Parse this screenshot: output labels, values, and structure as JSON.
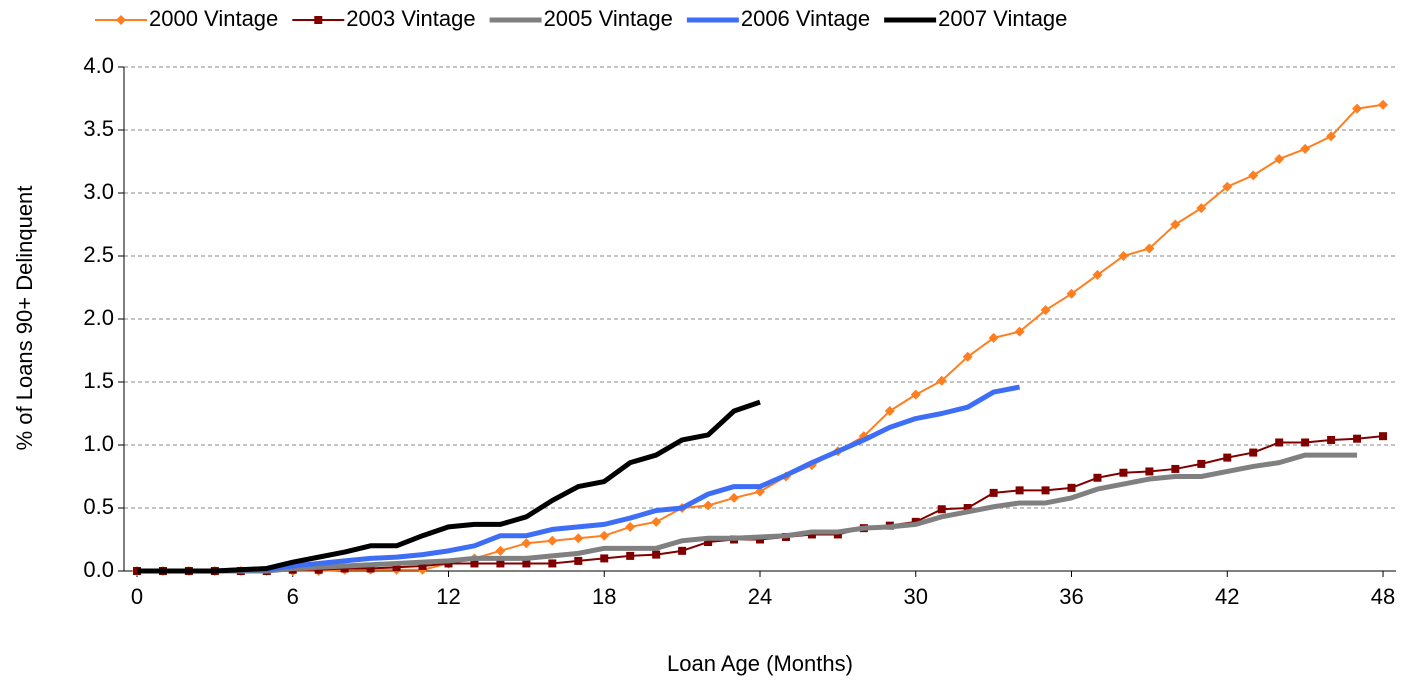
{
  "chart_data": {
    "type": "line",
    "x_label": "Loan Age (Months)",
    "y_label": "% of Loans 90+ Delinquent",
    "x": [
      0,
      1,
      2,
      3,
      4,
      5,
      6,
      7,
      8,
      9,
      10,
      11,
      12,
      13,
      14,
      15,
      16,
      17,
      18,
      19,
      20,
      21,
      22,
      23,
      24,
      25,
      26,
      27,
      28,
      29,
      30,
      31,
      32,
      33,
      34,
      35,
      36,
      37,
      38,
      39,
      40,
      41,
      42,
      43,
      44,
      45,
      46,
      47,
      48
    ],
    "xlim": [
      -0.5,
      48.5
    ],
    "xticks": [
      0,
      6,
      12,
      18,
      24,
      30,
      36,
      42,
      48
    ],
    "ylim": [
      0,
      4
    ],
    "yticks": [
      {
        "value": 0,
        "label": "0.0"
      },
      {
        "value": 0.5,
        "label": "0.5"
      },
      {
        "value": 1,
        "label": "1.0"
      },
      {
        "value": 1.5,
        "label": "1.5"
      },
      {
        "value": 2,
        "label": "2.0"
      },
      {
        "value": 2.5,
        "label": "2.5"
      },
      {
        "value": 3,
        "label": "3.0"
      },
      {
        "value": 3.5,
        "label": "3.5"
      },
      {
        "value": 4,
        "label": "4.0"
      }
    ],
    "grid": true,
    "legend": "top",
    "series": [
      {
        "name": "2000 Vintage",
        "color": "#ff7f20",
        "marker": "diamond",
        "width": 2,
        "values": [
          0,
          0,
          0,
          0,
          0,
          0,
          0,
          0,
          0.01,
          0.01,
          0.01,
          0.01,
          0.06,
          0.1,
          0.16,
          0.22,
          0.24,
          0.26,
          0.28,
          0.35,
          0.39,
          0.5,
          0.52,
          0.58,
          0.63,
          0.75,
          0.84,
          0.95,
          1.07,
          1.27,
          1.4,
          1.51,
          1.7,
          1.85,
          1.9,
          2.07,
          2.2,
          2.35,
          2.5,
          2.56,
          2.75,
          2.88,
          3.05,
          3.14,
          3.27,
          3.35,
          3.45,
          3.67,
          3.7
        ]
      },
      {
        "name": "2003 Vintage",
        "color": "#800000",
        "marker": "square",
        "width": 2,
        "values": [
          0,
          0,
          0,
          0,
          0,
          0,
          0.01,
          0.01,
          0.02,
          0.02,
          0.03,
          0.04,
          0.06,
          0.06,
          0.06,
          0.06,
          0.06,
          0.08,
          0.1,
          0.12,
          0.13,
          0.16,
          0.23,
          0.25,
          0.25,
          0.27,
          0.29,
          0.29,
          0.34,
          0.36,
          0.39,
          0.49,
          0.5,
          0.62,
          0.64,
          0.64,
          0.66,
          0.74,
          0.78,
          0.79,
          0.81,
          0.85,
          0.9,
          0.94,
          1.02,
          1.02,
          1.04,
          1.05,
          1.07
        ]
      },
      {
        "name": "2005 Vintage",
        "color": "#808080",
        "marker": "none",
        "width": 5,
        "values": [
          0,
          0,
          0,
          0,
          0,
          0,
          0.02,
          0.03,
          0.04,
          0.05,
          0.06,
          0.07,
          0.08,
          0.1,
          0.1,
          0.1,
          0.12,
          0.14,
          0.18,
          0.18,
          0.18,
          0.24,
          0.26,
          0.26,
          0.27,
          0.28,
          0.31,
          0.31,
          0.34,
          0.35,
          0.37,
          0.43,
          0.47,
          0.51,
          0.54,
          0.54,
          0.58,
          0.65,
          0.69,
          0.73,
          0.75,
          0.75,
          0.79,
          0.83,
          0.86,
          0.92,
          0.92,
          0.92,
          null
        ]
      },
      {
        "name": "2006 Vintage",
        "color": "#3d6ef5",
        "marker": "none",
        "width": 5,
        "values": [
          0,
          0,
          0,
          0,
          0.01,
          0.01,
          0.04,
          0.06,
          0.08,
          0.1,
          0.11,
          0.13,
          0.16,
          0.2,
          0.28,
          0.28,
          0.33,
          0.35,
          0.37,
          0.42,
          0.48,
          0.5,
          0.61,
          0.67,
          0.67,
          0.76,
          0.86,
          0.95,
          1.04,
          1.14,
          1.21,
          1.25,
          1.3,
          1.42,
          1.46,
          null,
          null,
          null,
          null,
          null,
          null,
          null,
          null,
          null,
          null,
          null,
          null,
          null,
          null
        ]
      },
      {
        "name": "2007 Vintage",
        "color": "#000000",
        "marker": "none",
        "width": 5,
        "values": [
          0,
          0,
          0,
          0,
          0.01,
          0.02,
          0.07,
          0.11,
          0.15,
          0.2,
          0.2,
          0.28,
          0.35,
          0.37,
          0.37,
          0.43,
          0.56,
          0.67,
          0.71,
          0.86,
          0.92,
          1.04,
          1.08,
          1.27,
          1.34,
          null,
          null,
          null,
          null,
          null,
          null,
          null,
          null,
          null,
          null,
          null,
          null,
          null,
          null,
          null,
          null,
          null,
          null,
          null,
          null,
          null,
          null,
          null,
          null
        ]
      }
    ]
  }
}
